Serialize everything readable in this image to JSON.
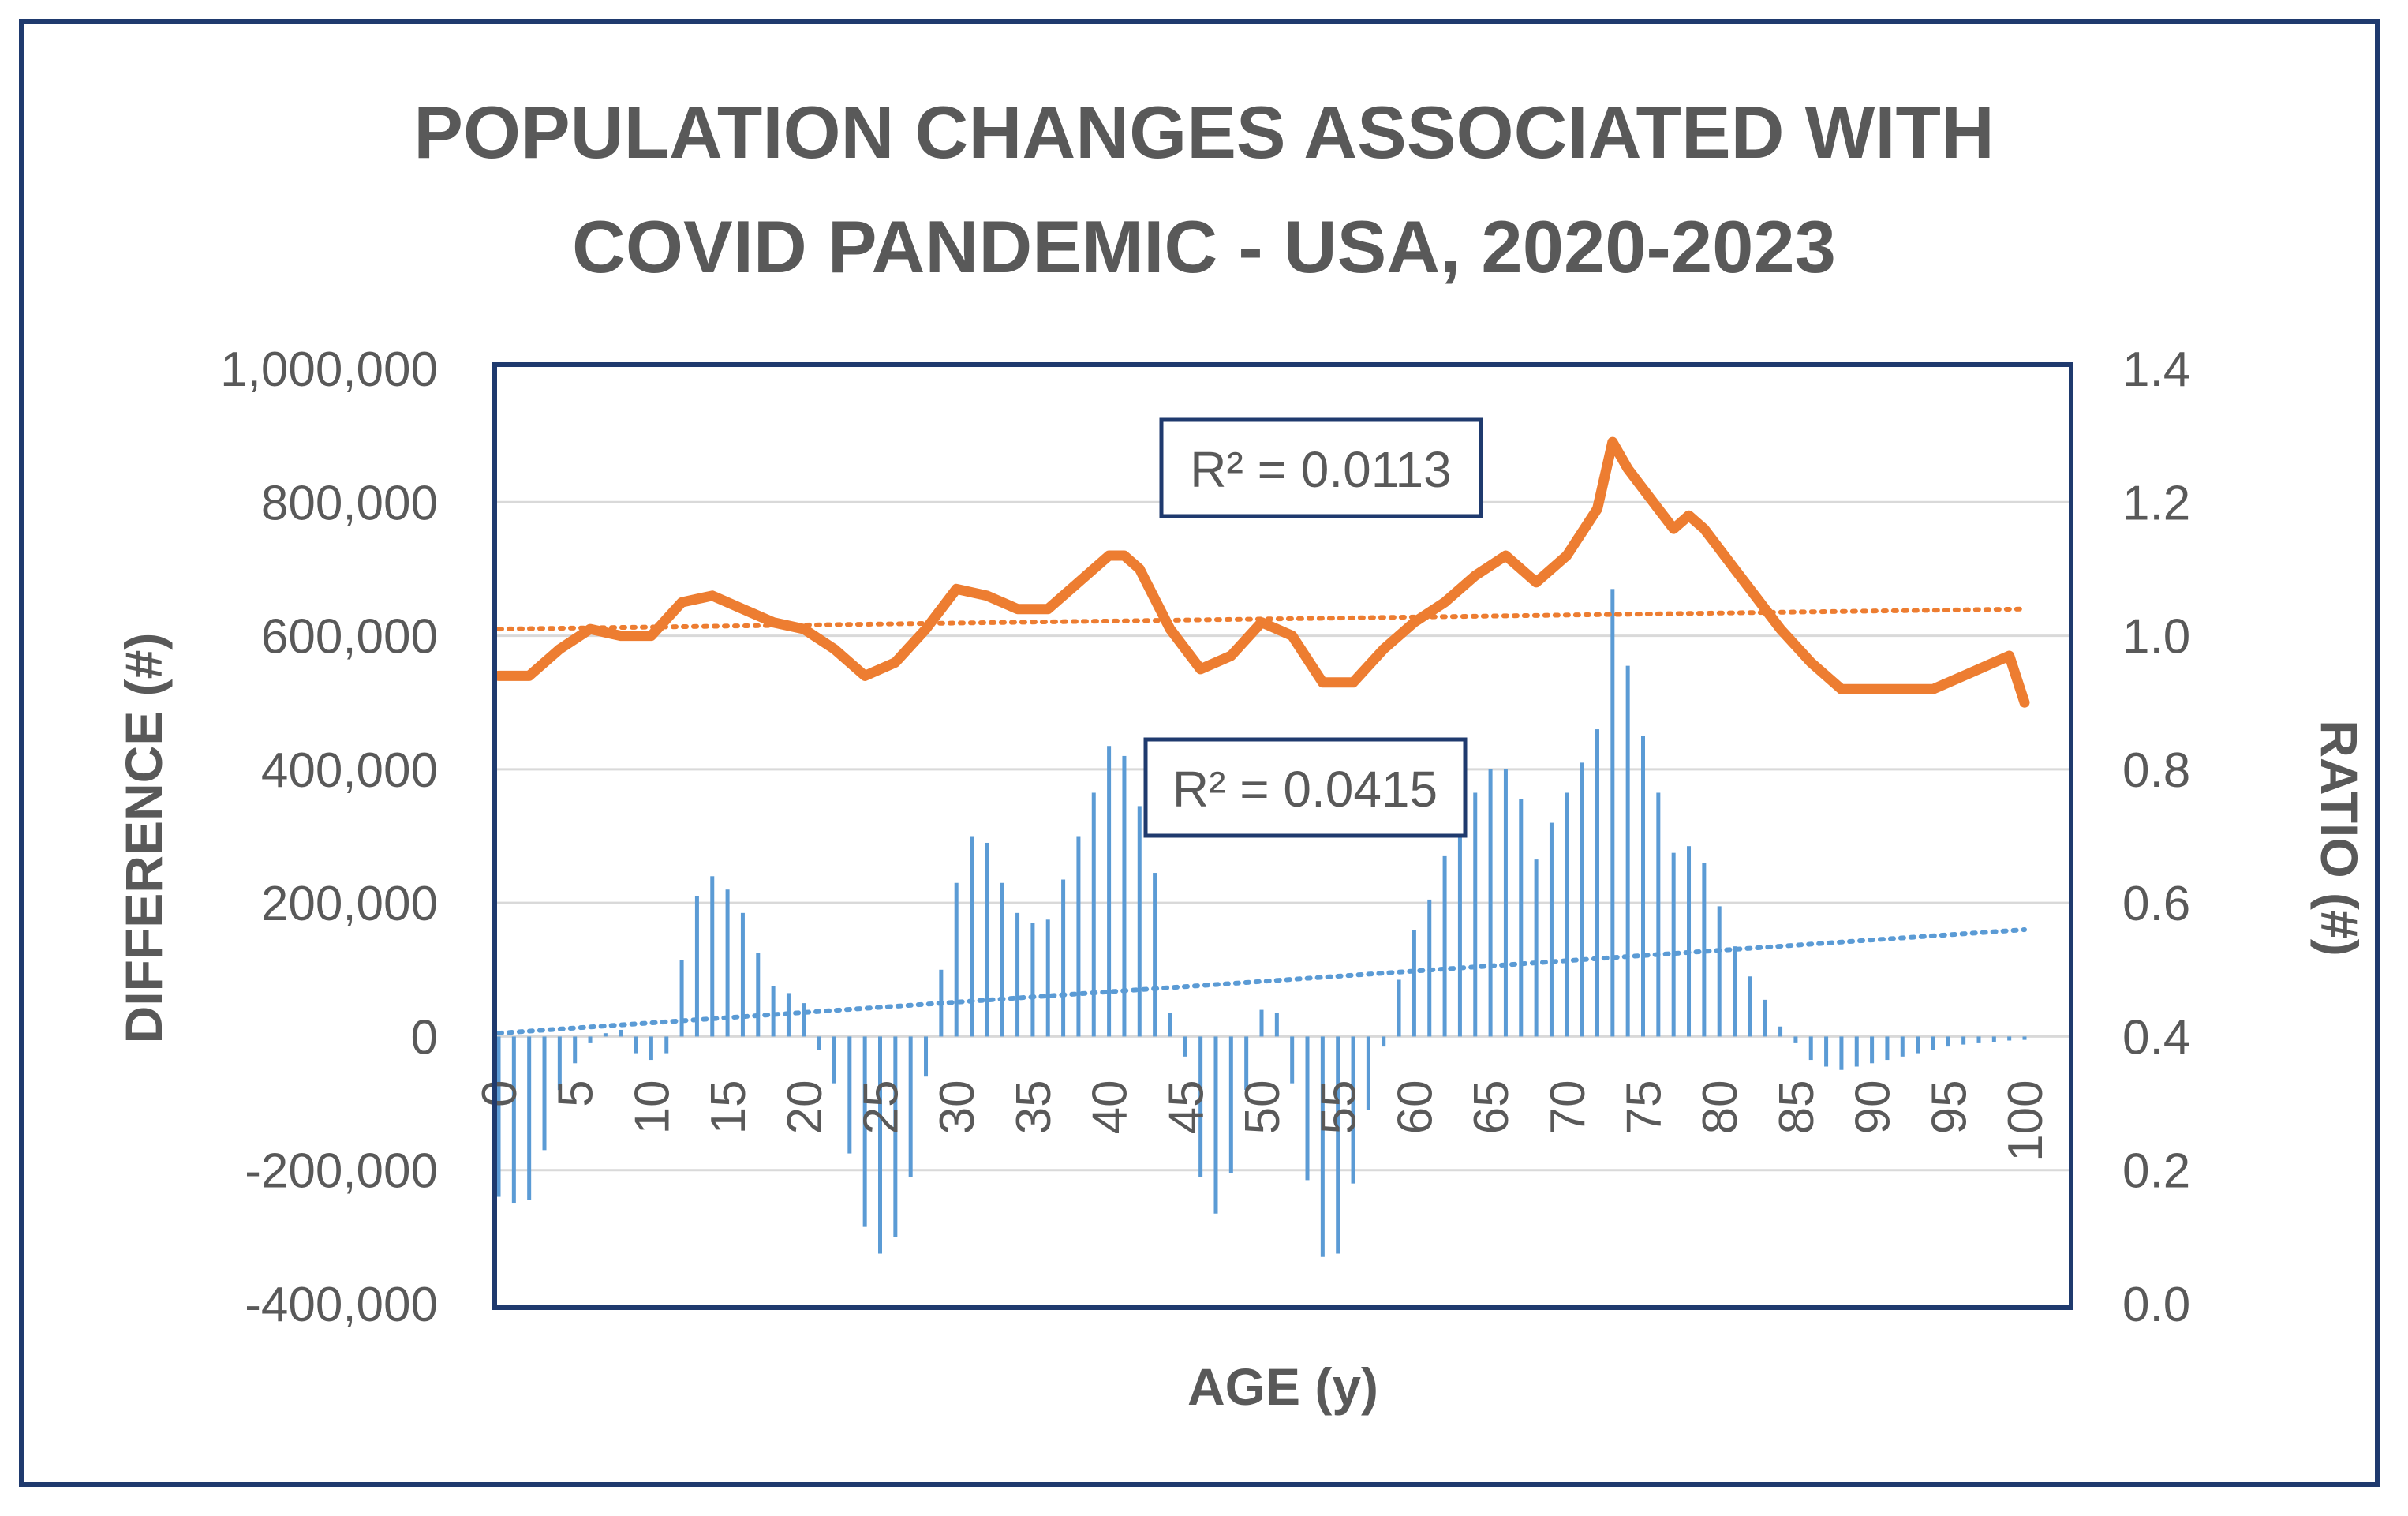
{
  "chart_data": {
    "type": "bar+line",
    "title_lines": [
      "POPULATION CHANGES ASSOCIATED WITH",
      "COVID   PANDEMIC - USA, 2020-2023"
    ],
    "xlabel": "AGE (y)",
    "ylabel_left": "DIFFERENCE (#)",
    "ylabel_right": "RATIO (#)",
    "ylim_left": [
      -400000,
      1000000
    ],
    "ylim_right": [
      0.0,
      1.4
    ],
    "left_ticks": [
      "1,000,000",
      "800,000",
      "600,000",
      "400,000",
      "200,000",
      "0",
      "-200,000",
      "-400,000"
    ],
    "left_tick_values": [
      1000000,
      800000,
      600000,
      400000,
      200000,
      0,
      -200000,
      -400000
    ],
    "right_ticks": [
      "1.4",
      "1.2",
      "1.0",
      "0.8",
      "0.6",
      "0.4",
      "0.2",
      "0.0"
    ],
    "right_tick_values": [
      1.4,
      1.2,
      1.0,
      0.8,
      0.6,
      0.4,
      0.2,
      0.0
    ],
    "x_ticks": [
      "0",
      "5",
      "10",
      "15",
      "20",
      "25",
      "30",
      "35",
      "40",
      "45",
      "50",
      "55",
      "60",
      "65",
      "70",
      "75",
      "80",
      "85",
      "90",
      "95",
      "100"
    ],
    "x_tick_values": [
      0,
      5,
      10,
      15,
      20,
      25,
      30,
      35,
      40,
      45,
      50,
      55,
      60,
      65,
      70,
      75,
      80,
      85,
      90,
      95,
      100
    ],
    "series": [
      {
        "name": "Difference",
        "axis": "left",
        "kind": "bar",
        "color": "#5b9bd5",
        "x": [
          0,
          1,
          2,
          3,
          4,
          5,
          6,
          7,
          8,
          9,
          10,
          11,
          12,
          13,
          14,
          15,
          16,
          17,
          18,
          19,
          20,
          21,
          22,
          23,
          24,
          25,
          26,
          27,
          28,
          29,
          30,
          31,
          32,
          33,
          34,
          35,
          36,
          37,
          38,
          39,
          40,
          41,
          42,
          43,
          44,
          45,
          46,
          47,
          48,
          49,
          50,
          51,
          52,
          53,
          54,
          55,
          56,
          57,
          58,
          59,
          60,
          61,
          62,
          63,
          64,
          65,
          66,
          67,
          68,
          69,
          70,
          71,
          72,
          73,
          74,
          75,
          76,
          77,
          78,
          79,
          80,
          81,
          82,
          83,
          84,
          85,
          86,
          87,
          88,
          89,
          90,
          91,
          92,
          93,
          94,
          95,
          96,
          97,
          98,
          99,
          100
        ],
        "values": [
          -240000,
          -250000,
          -245000,
          -170000,
          -80000,
          -40000,
          -10000,
          5000,
          10000,
          -25000,
          -35000,
          -25000,
          115000,
          210000,
          240000,
          220000,
          185000,
          125000,
          75000,
          65000,
          50000,
          -20000,
          -70000,
          -175000,
          -285000,
          -325000,
          -300000,
          -210000,
          -60000,
          100000,
          230000,
          300000,
          290000,
          230000,
          185000,
          170000,
          175000,
          235000,
          300000,
          365000,
          435000,
          420000,
          345000,
          245000,
          35000,
          -30000,
          -210000,
          -265000,
          -205000,
          -80000,
          40000,
          35000,
          -70000,
          -215000,
          -330000,
          -325000,
          -220000,
          -110000,
          -15000,
          85000,
          160000,
          205000,
          270000,
          315000,
          365000,
          400000,
          400000,
          355000,
          265000,
          320000,
          365000,
          410000,
          460000,
          670000,
          555000,
          450000,
          365000,
          275000,
          285000,
          260000,
          195000,
          135000,
          90000,
          55000,
          15000,
          -10000,
          -35000,
          -45000,
          -50000,
          -45000,
          -40000,
          -35000,
          -30000,
          -25000,
          -20000,
          -15000,
          -12000,
          -10000,
          -8000,
          -6000,
          -5000
        ]
      },
      {
        "name": "Ratio",
        "axis": "right",
        "kind": "line",
        "color": "#ed7d31",
        "x": [
          0,
          2,
          4,
          6,
          8,
          10,
          12,
          14,
          16,
          18,
          20,
          22,
          24,
          26,
          28,
          30,
          32,
          34,
          36,
          38,
          40,
          41,
          42,
          44,
          46,
          48,
          50,
          52,
          54,
          56,
          58,
          60,
          62,
          64,
          66,
          68,
          70,
          72,
          73,
          74,
          75,
          76,
          77,
          78,
          79,
          80,
          81,
          82,
          84,
          86,
          88,
          90,
          92,
          94,
          96,
          98,
          99,
          100
        ],
        "values": [
          0.94,
          0.94,
          0.98,
          1.01,
          1.0,
          1.0,
          1.05,
          1.06,
          1.04,
          1.02,
          1.01,
          0.98,
          0.94,
          0.96,
          1.01,
          1.07,
          1.06,
          1.04,
          1.04,
          1.08,
          1.12,
          1.12,
          1.1,
          1.01,
          0.95,
          0.97,
          1.02,
          1.0,
          0.93,
          0.93,
          0.98,
          1.02,
          1.05,
          1.09,
          1.12,
          1.08,
          1.12,
          1.19,
          1.29,
          1.25,
          1.22,
          1.19,
          1.16,
          1.18,
          1.16,
          1.13,
          1.1,
          1.07,
          1.01,
          0.96,
          0.92,
          0.92,
          0.92,
          0.92,
          0.94,
          0.96,
          0.97,
          0.9
        ]
      }
    ],
    "trendlines": [
      {
        "series": "Ratio",
        "axis": "right",
        "start": [
          0,
          1.01
        ],
        "end": [
          100,
          1.04
        ],
        "color": "#ed7d31",
        "label": "R² = 0.0113"
      },
      {
        "series": "Difference",
        "axis": "left",
        "start": [
          0,
          5000
        ],
        "end": [
          100,
          160000
        ],
        "color": "#5b9bd5",
        "label": "R² = 0.0415"
      }
    ],
    "gridlines": true,
    "legend": "none"
  }
}
